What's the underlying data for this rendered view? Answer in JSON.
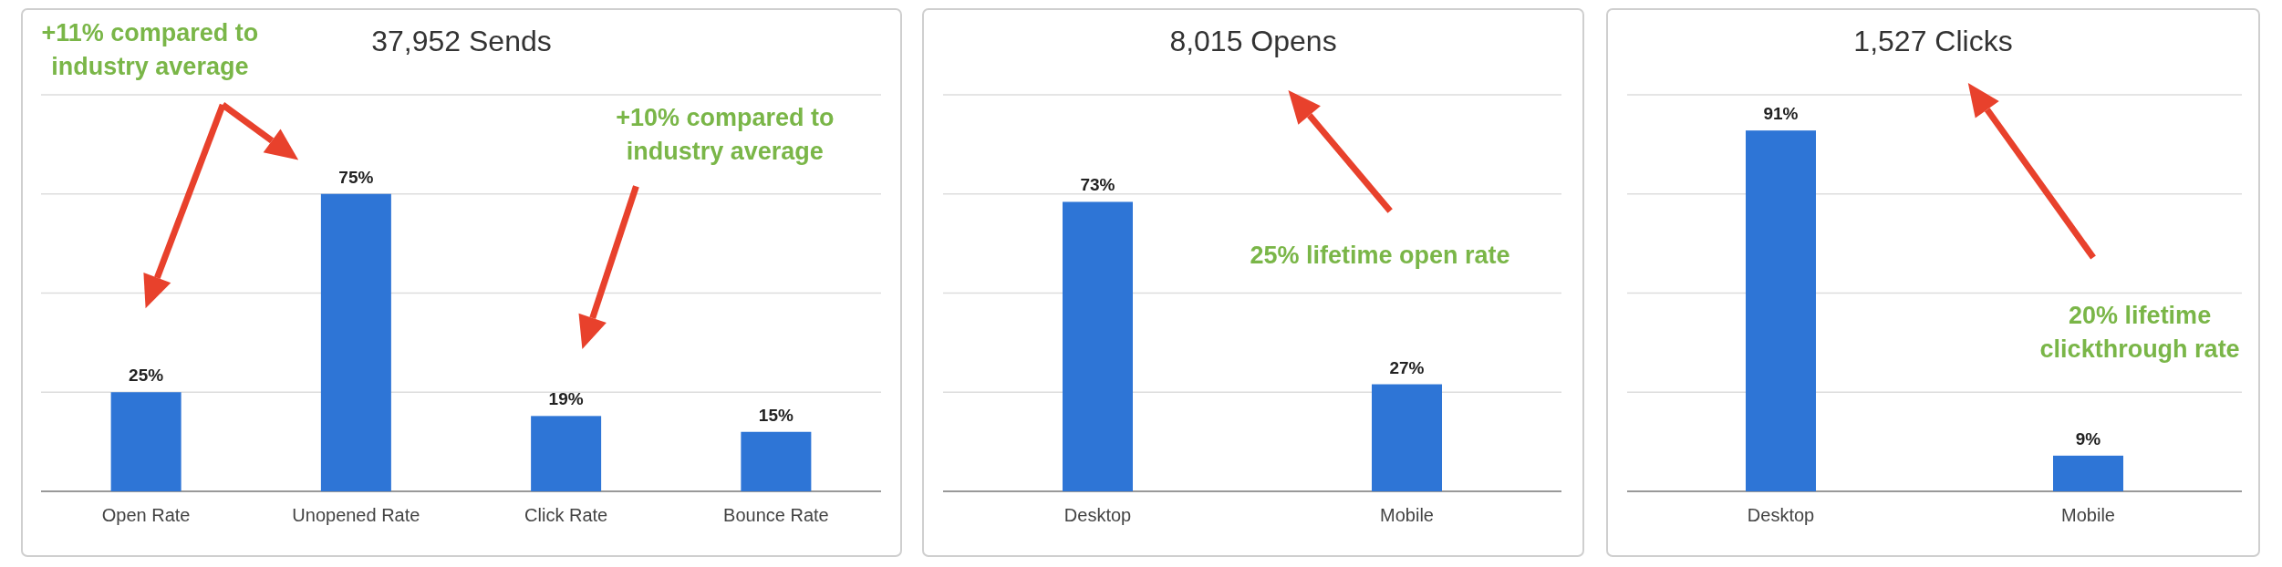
{
  "chart_data": [
    {
      "type": "bar",
      "title": "37,952 Sends",
      "categories": [
        "Open Rate",
        "Unopened Rate",
        "Click Rate",
        "Bounce Rate"
      ],
      "values": [
        25,
        75,
        19,
        15
      ],
      "color": "#2e75d6",
      "data_labels": true,
      "value_labels": [
        "25%",
        "75%",
        "19%",
        "15%"
      ],
      "ylim": [
        0,
        100
      ],
      "yticks": [
        {
          "value": 0,
          "label": null
        },
        {
          "value": 25,
          "label": null
        },
        {
          "value": 50,
          "label": null
        },
        {
          "value": 75,
          "label": null
        },
        {
          "value": 100,
          "label": null
        }
      ],
      "tick_labels": "x",
      "grid": "y",
      "annotations": [
        "+11% compared to industry average",
        "+10% compared to industry average"
      ]
    },
    {
      "type": "bar",
      "title": "8,015 Opens",
      "categories": [
        "Desktop",
        "Mobile"
      ],
      "values": [
        73,
        27
      ],
      "color": "#2e75d6",
      "data_labels": true,
      "value_labels": [
        "73%",
        "27%"
      ],
      "ylim": [
        0,
        100
      ],
      "yticks": [
        {
          "value": 0,
          "label": null
        },
        {
          "value": 25,
          "label": null
        },
        {
          "value": 50,
          "label": null
        },
        {
          "value": 75,
          "label": null
        },
        {
          "value": 100,
          "label": null
        }
      ],
      "tick_labels": "x",
      "grid": "y",
      "annotations": [
        "25% lifetime open rate"
      ]
    },
    {
      "type": "bar",
      "title": "1,527 Clicks",
      "categories": [
        "Desktop",
        "Mobile"
      ],
      "values": [
        91,
        9
      ],
      "color": "#2e75d6",
      "data_labels": true,
      "value_labels": [
        "91%",
        "9%"
      ],
      "ylim": [
        0,
        100
      ],
      "yticks": [
        {
          "value": 0,
          "label": null
        },
        {
          "value": 25,
          "label": null
        },
        {
          "value": 50,
          "label": null
        },
        {
          "value": 75,
          "label": null
        },
        {
          "value": 100,
          "label": null
        }
      ],
      "tick_labels": "x",
      "grid": "y",
      "annotations": [
        "20% lifetime clickthrough rate"
      ]
    }
  ]
}
